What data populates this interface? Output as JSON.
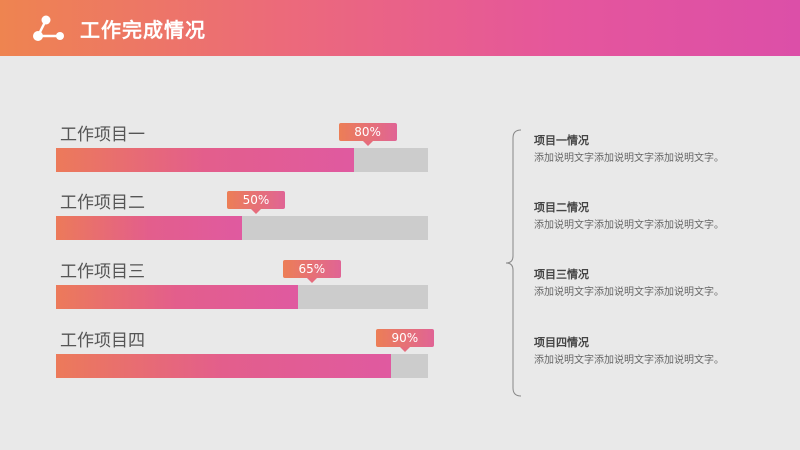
{
  "header": {
    "title": "工作完成情况"
  },
  "progress": [
    {
      "label": "工作项目一",
      "percent_label": "80%",
      "value": 0.8
    },
    {
      "label": "工作项目二",
      "percent_label": "50%",
      "value": 0.5
    },
    {
      "label": "工作项目三",
      "percent_label": "65%",
      "value": 0.65
    },
    {
      "label": "工作项目四",
      "percent_label": "90%",
      "value": 0.9
    }
  ],
  "descriptions": [
    {
      "title": "项目一情况",
      "text": "添加说明文字添加说明文字添加说明文字。"
    },
    {
      "title": "项目二情况",
      "text": "添加说明文字添加说明文字添加说明文字。"
    },
    {
      "title": "项目三情况",
      "text": "添加说明文字添加说明文字添加说明文字。"
    },
    {
      "title": "项目四情况",
      "text": "添加说明文字添加说明文字添加说明文字。"
    }
  ]
}
